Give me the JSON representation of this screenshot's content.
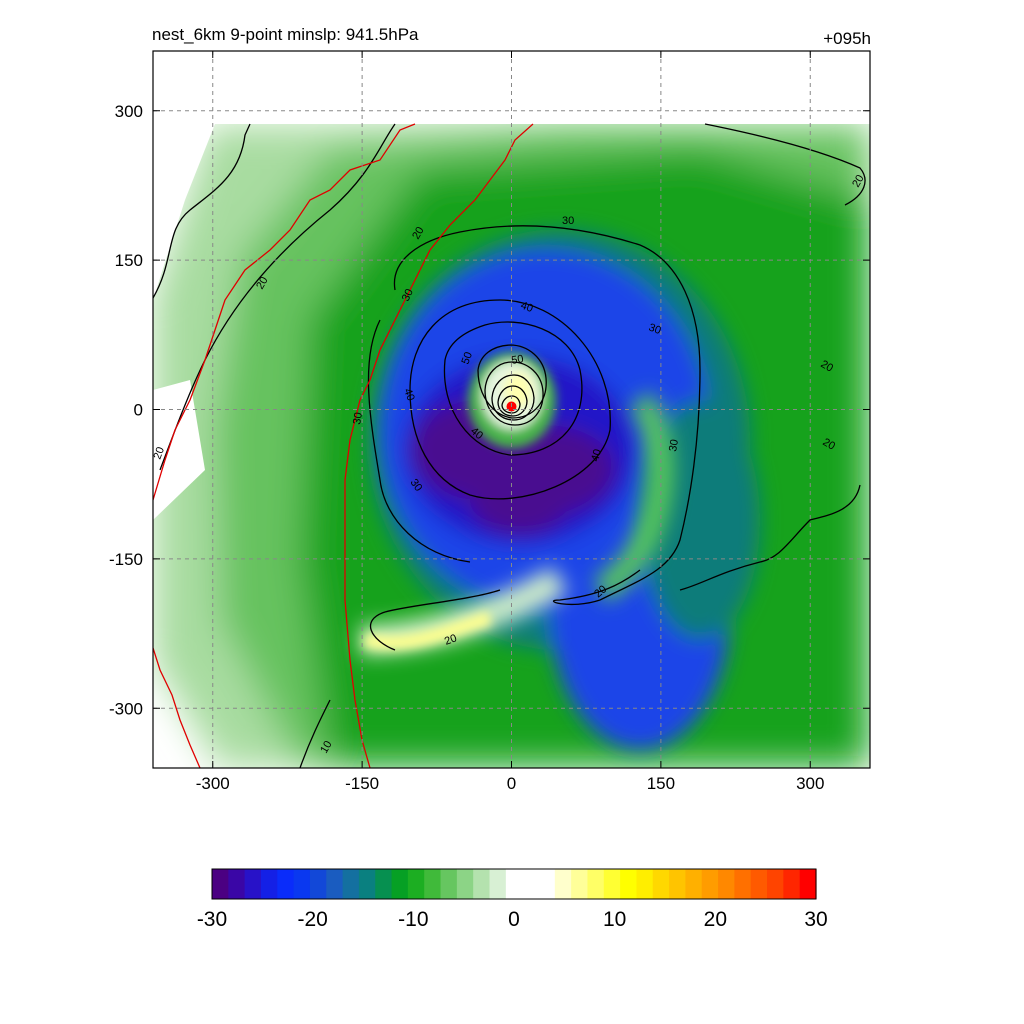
{
  "chart_data": {
    "type": "heatmap",
    "title": "nest_6km  9-point minslp: 941.5hPa",
    "forecast_hour": "+095h",
    "xlabel": "",
    "ylabel": "",
    "xlim": [
      -360,
      360
    ],
    "ylim": [
      -360,
      360
    ],
    "x_ticks": [
      -300,
      -150,
      0,
      150,
      300
    ],
    "y_ticks": [
      300,
      150,
      0,
      -150,
      -300
    ],
    "x_tick_labels": [
      "-300",
      "-150",
      "0",
      "150",
      "300"
    ],
    "y_tick_labels": [
      "300",
      "150",
      "0",
      "-150",
      "-300"
    ],
    "grid": true,
    "colorbar": {
      "range": [
        -30,
        30
      ],
      "ticks": [
        -30,
        -20,
        -10,
        0,
        10,
        20,
        30
      ],
      "tick_labels": [
        "-30",
        "-20",
        "-10",
        "0",
        "10",
        "20",
        "30"
      ],
      "colors": [
        "#4b0082",
        "#3a06a6",
        "#2812c8",
        "#1420e6",
        "#0a2cfa",
        "#0a38f0",
        "#1248d8",
        "#1a5cc0",
        "#1470a0",
        "#0a8080",
        "#069050",
        "#06a024",
        "#1cae22",
        "#40ba3a",
        "#66c660",
        "#8cd486",
        "#b4e2ae",
        "#d8f0d4",
        "#ffffff",
        "#ffffff",
        "#ffffff",
        "#ffffcc",
        "#ffff99",
        "#ffff66",
        "#ffff33",
        "#ffff00",
        "#ffee00",
        "#ffd800",
        "#ffc400",
        "#ffb000",
        "#ff9c00",
        "#ff8800",
        "#ff7000",
        "#ff5a00",
        "#ff4400",
        "#ff2600",
        "#ff0000"
      ]
    },
    "series": [
      {
        "name": "contours",
        "levels": [
          10,
          20,
          30,
          40,
          50
        ]
      }
    ],
    "annotations": [
      "20",
      "20",
      "20",
      "20",
      "20",
      "20",
      "20",
      "20",
      "30",
      "30",
      "30",
      "30",
      "30",
      "30",
      "40",
      "40",
      "40",
      "40",
      "50",
      "50",
      "10"
    ],
    "storm_center": [
      0,
      3
    ]
  }
}
